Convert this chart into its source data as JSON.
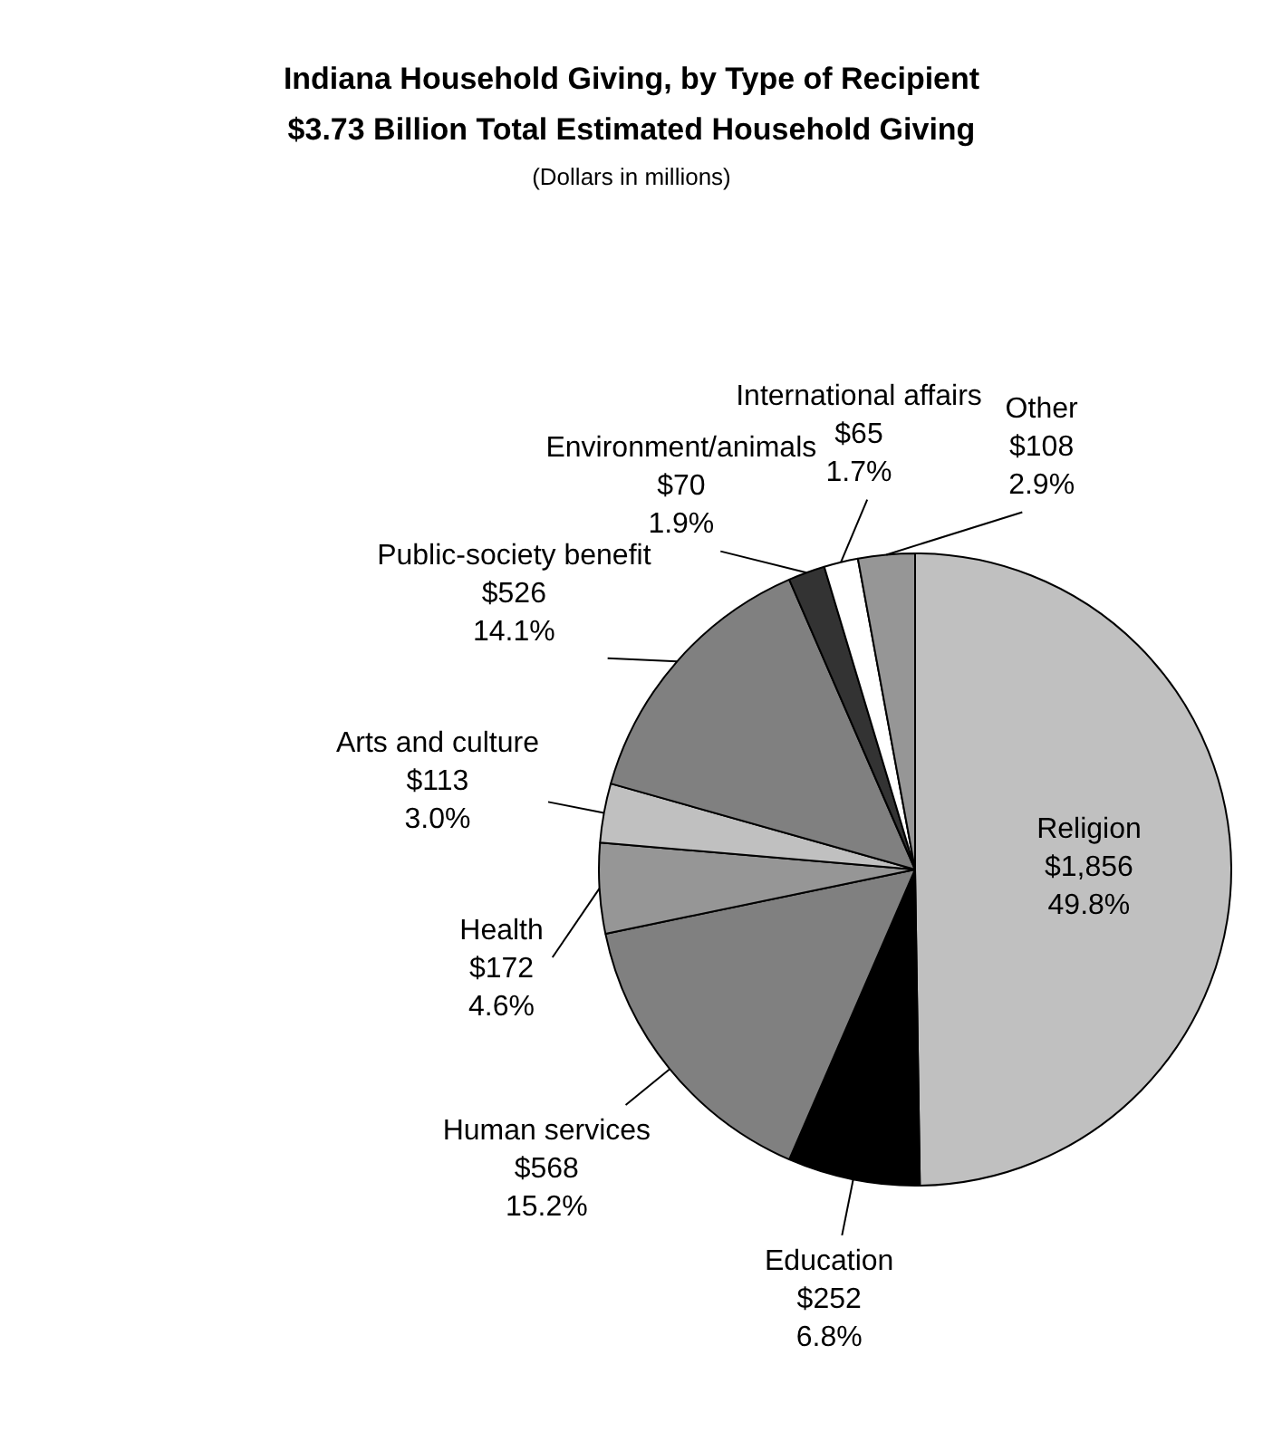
{
  "chart_data": {
    "type": "pie",
    "title": "Indiana Household Giving, by Type of Recipient",
    "subtitle": "$3.73 Billion Total Estimated Household Giving",
    "annotations": [
      "(Dollars in millions)"
    ],
    "categories": [
      "Religion",
      "Education",
      "Human services",
      "Health",
      "Arts and culture",
      "Public-society benefit",
      "Environment/animals",
      "International affairs",
      "Other"
    ],
    "values": [
      1856,
      252,
      568,
      172,
      113,
      526,
      70,
      65,
      108
    ],
    "value_labels": [
      "$1,856\n49.8%",
      "$252\n6.8%",
      "$568\n15.2%",
      "$172\n4.6%",
      "$113\n3.0%",
      "$526\n14.1%",
      "$70\n1.9%",
      "$65\n1.7%",
      "$108\n2.9%"
    ],
    "colors": [
      "#c0c0c0",
      "#000000",
      "#808080",
      "#969696",
      "#c0c0c0",
      "#808080",
      "#333333",
      "#ffffff",
      "#969696"
    ],
    "legend": false
  }
}
